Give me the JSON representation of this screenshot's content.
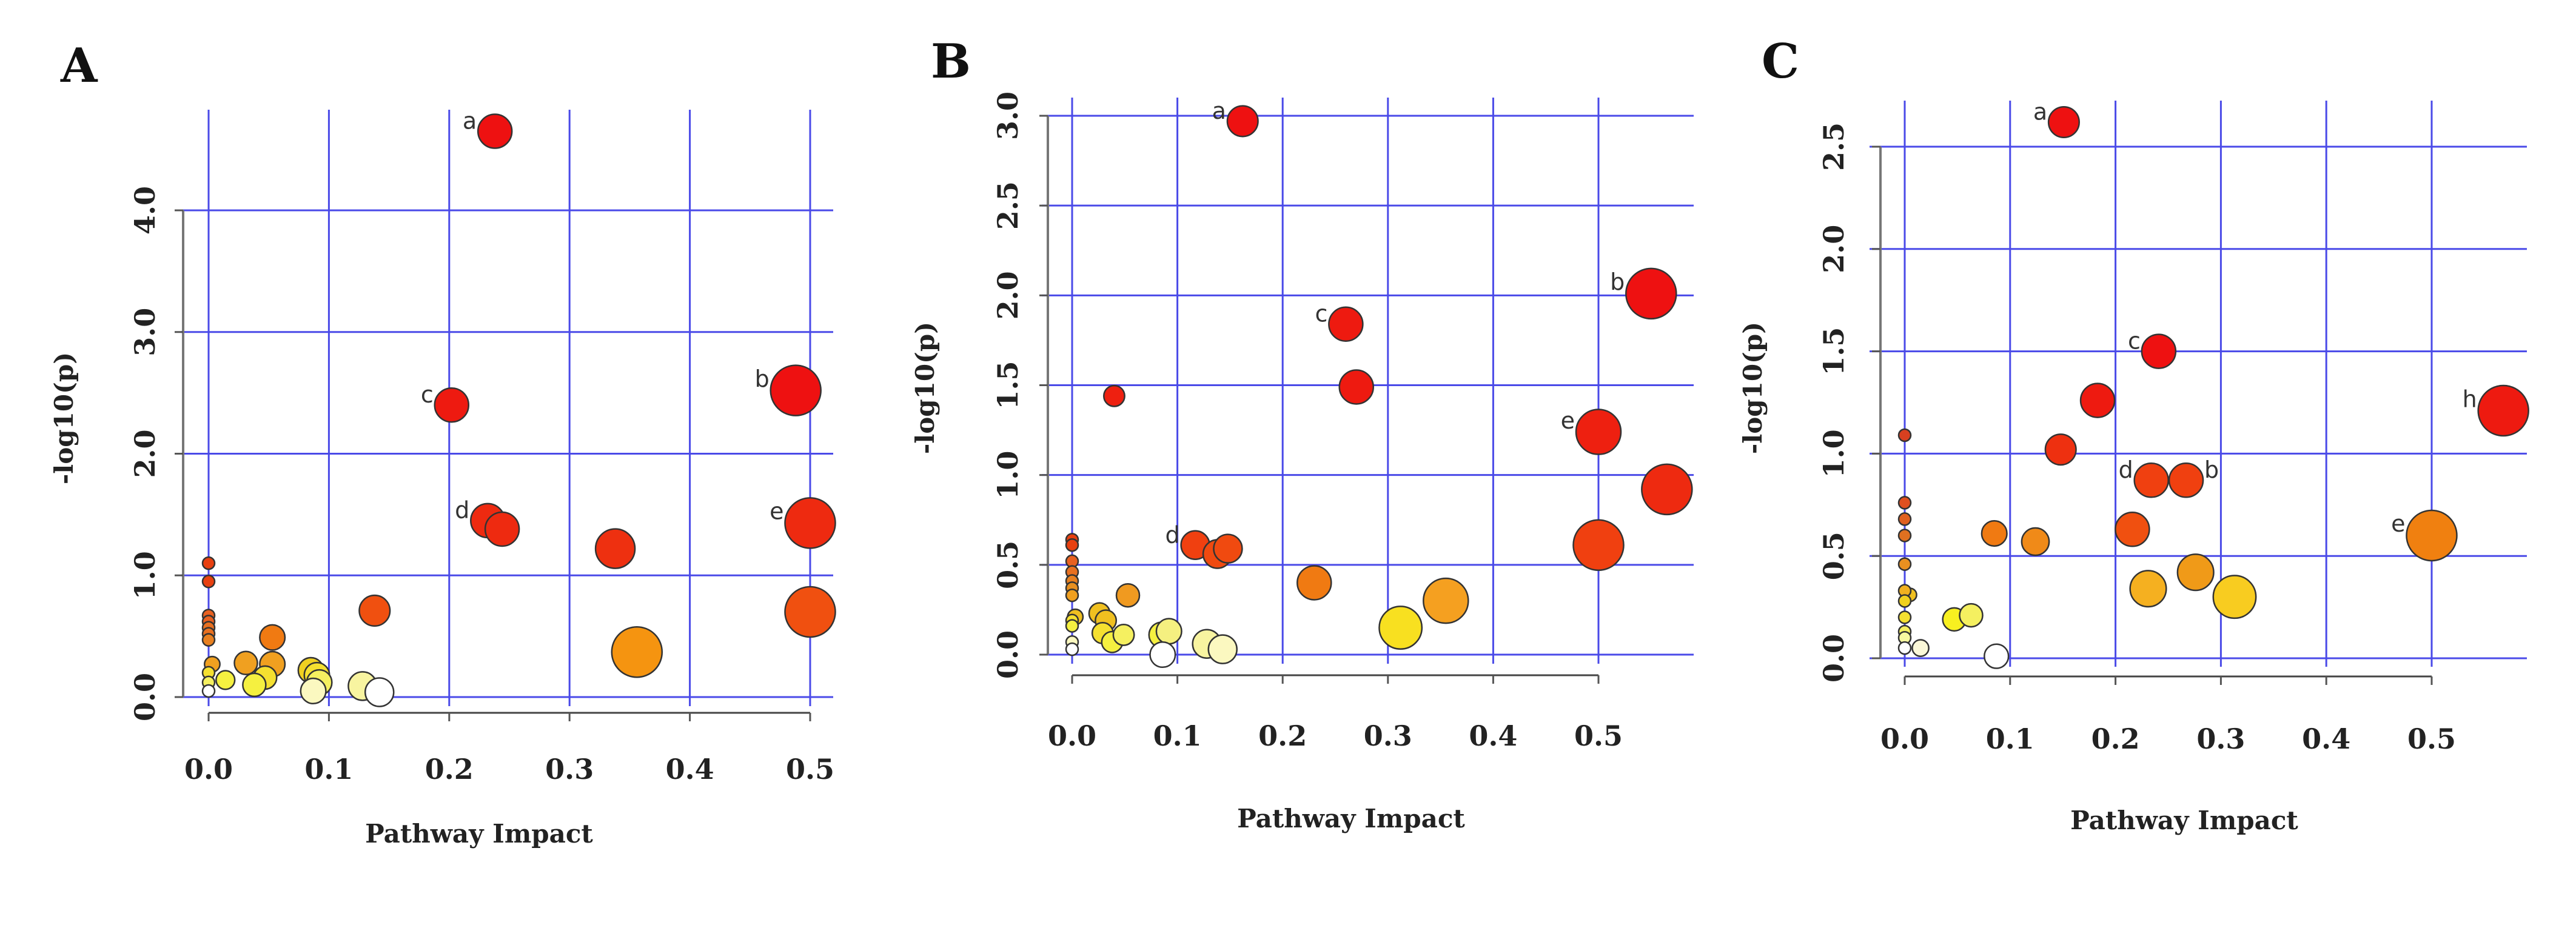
{
  "chart_data": [
    {
      "type": "scatter",
      "panel": "A",
      "xlabel": "Pathway Impact",
      "ylabel": "-log10(p)",
      "xticks": [
        "0.0",
        "0.1",
        "0.2",
        "0.3",
        "0.4",
        "0.5"
      ],
      "xtick_values": [
        0,
        0.1,
        0.2,
        0.3,
        0.4,
        0.5
      ],
      "yticks": [
        "0.0",
        "1.0",
        "2.0",
        "3.0",
        "4.0"
      ],
      "ytick_values": [
        0,
        1,
        2,
        3,
        4
      ],
      "grid": true,
      "points": [
        {
          "x": 0.238,
          "y": 4.65,
          "size": 3,
          "color": "#ee1111",
          "label": "a"
        },
        {
          "x": 0.488,
          "y": 2.52,
          "size": 4.5,
          "color": "#ee1111",
          "label": "b"
        },
        {
          "x": 0.202,
          "y": 2.4,
          "size": 3,
          "color": "#ee1a10",
          "label": "c"
        },
        {
          "x": 0.232,
          "y": 1.45,
          "size": 3,
          "color": "#ee2a10",
          "label": "d"
        },
        {
          "x": 0.244,
          "y": 1.38,
          "size": 3,
          "color": "#ee2a10"
        },
        {
          "x": 0.5,
          "y": 1.43,
          "size": 4.5,
          "color": "#ee2a10",
          "label": "e"
        },
        {
          "x": 0.338,
          "y": 1.22,
          "size": 3.5,
          "color": "#ee3010"
        },
        {
          "x": 0.5,
          "y": 0.7,
          "size": 4.5,
          "color": "#f05010"
        },
        {
          "x": 0.356,
          "y": 0.37,
          "size": 4.5,
          "color": "#f59410"
        },
        {
          "x": 0.138,
          "y": 0.71,
          "size": 2.7,
          "color": "#f05010"
        },
        {
          "x": 0.053,
          "y": 0.49,
          "size": 2.2,
          "color": "#f07a12"
        },
        {
          "x": 0.053,
          "y": 0.27,
          "size": 2.2,
          "color": "#f0a020"
        },
        {
          "x": 0.031,
          "y": 0.28,
          "size": 2,
          "color": "#f0a020"
        },
        {
          "x": 0.047,
          "y": 0.16,
          "size": 2,
          "color": "#f5e030"
        },
        {
          "x": 0.038,
          "y": 0.1,
          "size": 2,
          "color": "#f5f040"
        },
        {
          "x": 0.014,
          "y": 0.14,
          "size": 1.6,
          "color": "#f5f040"
        },
        {
          "x": 0.085,
          "y": 0.22,
          "size": 2.2,
          "color": "#f0d020"
        },
        {
          "x": 0.09,
          "y": 0.18,
          "size": 2.2,
          "color": "#f5e030"
        },
        {
          "x": 0.092,
          "y": 0.12,
          "size": 2.2,
          "color": "#f5f060"
        },
        {
          "x": 0.087,
          "y": 0.05,
          "size": 2.2,
          "color": "#fbf8c0"
        },
        {
          "x": 0.128,
          "y": 0.09,
          "size": 2.5,
          "color": "#f8f4a0"
        },
        {
          "x": 0.142,
          "y": 0.04,
          "size": 2.5,
          "color": "#ffffff"
        },
        {
          "x": 0,
          "y": 1.1,
          "size": 1,
          "color": "#e84010"
        },
        {
          "x": 0,
          "y": 0.95,
          "size": 1,
          "color": "#e84010"
        },
        {
          "x": 0,
          "y": 0.67,
          "size": 1,
          "color": "#e86020"
        },
        {
          "x": 0,
          "y": 0.62,
          "size": 1,
          "color": "#e86020"
        },
        {
          "x": 0,
          "y": 0.57,
          "size": 1,
          "color": "#e87020"
        },
        {
          "x": 0,
          "y": 0.52,
          "size": 1,
          "color": "#e87020"
        },
        {
          "x": 0,
          "y": 0.47,
          "size": 1,
          "color": "#e88020"
        },
        {
          "x": 0.003,
          "y": 0.27,
          "size": 1.3,
          "color": "#f0a020"
        },
        {
          "x": 0,
          "y": 0.2,
          "size": 1,
          "color": "#f5e030"
        },
        {
          "x": 0,
          "y": 0.12,
          "size": 1,
          "color": "#f5f060"
        },
        {
          "x": 0,
          "y": 0.05,
          "size": 1,
          "color": "#ffffff"
        }
      ]
    },
    {
      "type": "scatter",
      "panel": "B",
      "xlabel": "Pathway Impact",
      "ylabel": "-log10(p)",
      "xticks": [
        "0.0",
        "0.1",
        "0.2",
        "0.3",
        "0.4",
        "0.5"
      ],
      "xtick_values": [
        0,
        0.1,
        0.2,
        0.3,
        0.4,
        0.5
      ],
      "yticks": [
        "0.0",
        "0.5",
        "1.0",
        "1.5",
        "2.0",
        "2.5",
        "3.0"
      ],
      "ytick_values": [
        0,
        0.5,
        1,
        1.5,
        2,
        2.5,
        3
      ],
      "grid": true,
      "points": [
        {
          "x": 0.162,
          "y": 2.97,
          "size": 2.7,
          "color": "#ee1111",
          "label": "a"
        },
        {
          "x": 0.55,
          "y": 2.01,
          "size": 4.5,
          "color": "#ee1111",
          "label": "b"
        },
        {
          "x": 0.26,
          "y": 1.84,
          "size": 3,
          "color": "#ee1a10",
          "label": "c"
        },
        {
          "x": 0.27,
          "y": 1.49,
          "size": 3,
          "color": "#ee1a10"
        },
        {
          "x": 0.04,
          "y": 1.44,
          "size": 1.8,
          "color": "#ee2010"
        },
        {
          "x": 0.5,
          "y": 1.24,
          "size": 4,
          "color": "#ee2010",
          "label": "e"
        },
        {
          "x": 0.565,
          "y": 0.92,
          "size": 4.5,
          "color": "#ee2a10"
        },
        {
          "x": 0.5,
          "y": 0.61,
          "size": 4.5,
          "color": "#f04010"
        },
        {
          "x": 0.117,
          "y": 0.61,
          "size": 2.5,
          "color": "#f04010",
          "label": "d"
        },
        {
          "x": 0.138,
          "y": 0.56,
          "size": 2.5,
          "color": "#f04a10"
        },
        {
          "x": 0.148,
          "y": 0.59,
          "size": 2.5,
          "color": "#f04a10"
        },
        {
          "x": 0.23,
          "y": 0.4,
          "size": 3,
          "color": "#f07a12"
        },
        {
          "x": 0.355,
          "y": 0.3,
          "size": 4,
          "color": "#f5a020"
        },
        {
          "x": 0.312,
          "y": 0.15,
          "size": 3.8,
          "color": "#f8e020"
        },
        {
          "x": 0.053,
          "y": 0.33,
          "size": 2,
          "color": "#f09a20"
        },
        {
          "x": 0.026,
          "y": 0.23,
          "size": 1.8,
          "color": "#f0c020"
        },
        {
          "x": 0.032,
          "y": 0.19,
          "size": 1.8,
          "color": "#f0c020"
        },
        {
          "x": 0.029,
          "y": 0.12,
          "size": 1.8,
          "color": "#f5e030"
        },
        {
          "x": 0.038,
          "y": 0.07,
          "size": 1.8,
          "color": "#f5f040"
        },
        {
          "x": 0.049,
          "y": 0.11,
          "size": 1.8,
          "color": "#f5f060"
        },
        {
          "x": 0.085,
          "y": 0.11,
          "size": 2.2,
          "color": "#f5f040"
        },
        {
          "x": 0.092,
          "y": 0.13,
          "size": 2.2,
          "color": "#f5f080"
        },
        {
          "x": 0.086,
          "y": 0.0,
          "size": 2.2,
          "color": "#ffffff"
        },
        {
          "x": 0.128,
          "y": 0.06,
          "size": 2.5,
          "color": "#f8f4a0"
        },
        {
          "x": 0.143,
          "y": 0.03,
          "size": 2.5,
          "color": "#fbf8c0"
        },
        {
          "x": 0,
          "y": 0.64,
          "size": 1,
          "color": "#e84010"
        },
        {
          "x": 0,
          "y": 0.61,
          "size": 1,
          "color": "#e84010"
        },
        {
          "x": 0,
          "y": 0.52,
          "size": 1,
          "color": "#e86020"
        },
        {
          "x": 0,
          "y": 0.46,
          "size": 1,
          "color": "#e87020"
        },
        {
          "x": 0,
          "y": 0.41,
          "size": 1,
          "color": "#e88020"
        },
        {
          "x": 0,
          "y": 0.37,
          "size": 1,
          "color": "#e89020"
        },
        {
          "x": 0,
          "y": 0.33,
          "size": 1,
          "color": "#f0a020"
        },
        {
          "x": 0.003,
          "y": 0.21,
          "size": 1.3,
          "color": "#f0c020"
        },
        {
          "x": 0,
          "y": 0.19,
          "size": 1,
          "color": "#f5e030"
        },
        {
          "x": 0,
          "y": 0.16,
          "size": 1,
          "color": "#f5f040"
        },
        {
          "x": 0,
          "y": 0.07,
          "size": 1,
          "color": "#fbf8c0"
        },
        {
          "x": 0,
          "y": 0.03,
          "size": 1,
          "color": "#ffffff"
        }
      ]
    },
    {
      "type": "scatter",
      "panel": "C",
      "xlabel": "Pathway Impact",
      "ylabel": "-log10(p)",
      "xticks": [
        "0.0",
        "0.1",
        "0.2",
        "0.3",
        "0.4",
        "0.5"
      ],
      "xtick_values": [
        0,
        0.1,
        0.2,
        0.3,
        0.4,
        0.5
      ],
      "yticks": [
        "0.0",
        "0.5",
        "1.0",
        "1.5",
        "2.0",
        "2.5"
      ],
      "ytick_values": [
        0,
        0.5,
        1,
        1.5,
        2,
        2.5
      ],
      "grid": true,
      "points": [
        {
          "x": 0.151,
          "y": 2.62,
          "size": 2.7,
          "color": "#ee1111",
          "label": "a"
        },
        {
          "x": 0.241,
          "y": 1.5,
          "size": 3,
          "color": "#ee1111",
          "label": "c"
        },
        {
          "x": 0.183,
          "y": 1.26,
          "size": 3,
          "color": "#ee1a10"
        },
        {
          "x": 0.568,
          "y": 1.21,
          "size": 4.5,
          "color": "#ee1a10",
          "label": "h"
        },
        {
          "x": 0.148,
          "y": 1.02,
          "size": 2.7,
          "color": "#ee3010"
        },
        {
          "x": 0.234,
          "y": 0.87,
          "size": 3,
          "color": "#f04010",
          "label": "d"
        },
        {
          "x": 0.267,
          "y": 0.87,
          "size": 3,
          "color": "#f04010",
          "label": "b",
          "label_side": "right"
        },
        {
          "x": 0.216,
          "y": 0.63,
          "size": 3,
          "color": "#f05010"
        },
        {
          "x": 0.5,
          "y": 0.6,
          "size": 4.5,
          "color": "#f08010",
          "label": "e"
        },
        {
          "x": 0.085,
          "y": 0.61,
          "size": 2.2,
          "color": "#f07a12"
        },
        {
          "x": 0.124,
          "y": 0.57,
          "size": 2.4,
          "color": "#f08a18"
        },
        {
          "x": 0.276,
          "y": 0.42,
          "size": 3.2,
          "color": "#f09a18"
        },
        {
          "x": 0.231,
          "y": 0.34,
          "size": 3.2,
          "color": "#f5b020"
        },
        {
          "x": 0.313,
          "y": 0.3,
          "size": 3.8,
          "color": "#f8cc20"
        },
        {
          "x": 0.047,
          "y": 0.19,
          "size": 2,
          "color": "#f8f020"
        },
        {
          "x": 0.063,
          "y": 0.21,
          "size": 2,
          "color": "#f5f060"
        },
        {
          "x": 0.015,
          "y": 0.05,
          "size": 1.4,
          "color": "#fbf8d8"
        },
        {
          "x": 0.087,
          "y": 0.01,
          "size": 2.1,
          "color": "#ffffff"
        },
        {
          "x": 0,
          "y": 1.09,
          "size": 1,
          "color": "#d84020"
        },
        {
          "x": 0,
          "y": 0.76,
          "size": 1,
          "color": "#e05020"
        },
        {
          "x": 0,
          "y": 0.68,
          "size": 1,
          "color": "#e06020"
        },
        {
          "x": 0,
          "y": 0.6,
          "size": 1,
          "color": "#e07020"
        },
        {
          "x": 0,
          "y": 0.46,
          "size": 1,
          "color": "#e89020"
        },
        {
          "x": 0,
          "y": 0.33,
          "size": 1,
          "color": "#f0b020"
        },
        {
          "x": 0.005,
          "y": 0.31,
          "size": 1.1,
          "color": "#f0c020"
        },
        {
          "x": 0,
          "y": 0.28,
          "size": 1,
          "color": "#f0d020"
        },
        {
          "x": 0,
          "y": 0.2,
          "size": 1,
          "color": "#f5e030"
        },
        {
          "x": 0,
          "y": 0.13,
          "size": 1,
          "color": "#f5f060"
        },
        {
          "x": 0,
          "y": 0.1,
          "size": 1,
          "color": "#f8f8a0"
        },
        {
          "x": 0,
          "y": 0.05,
          "size": 1,
          "color": "#ffffff"
        }
      ]
    }
  ]
}
